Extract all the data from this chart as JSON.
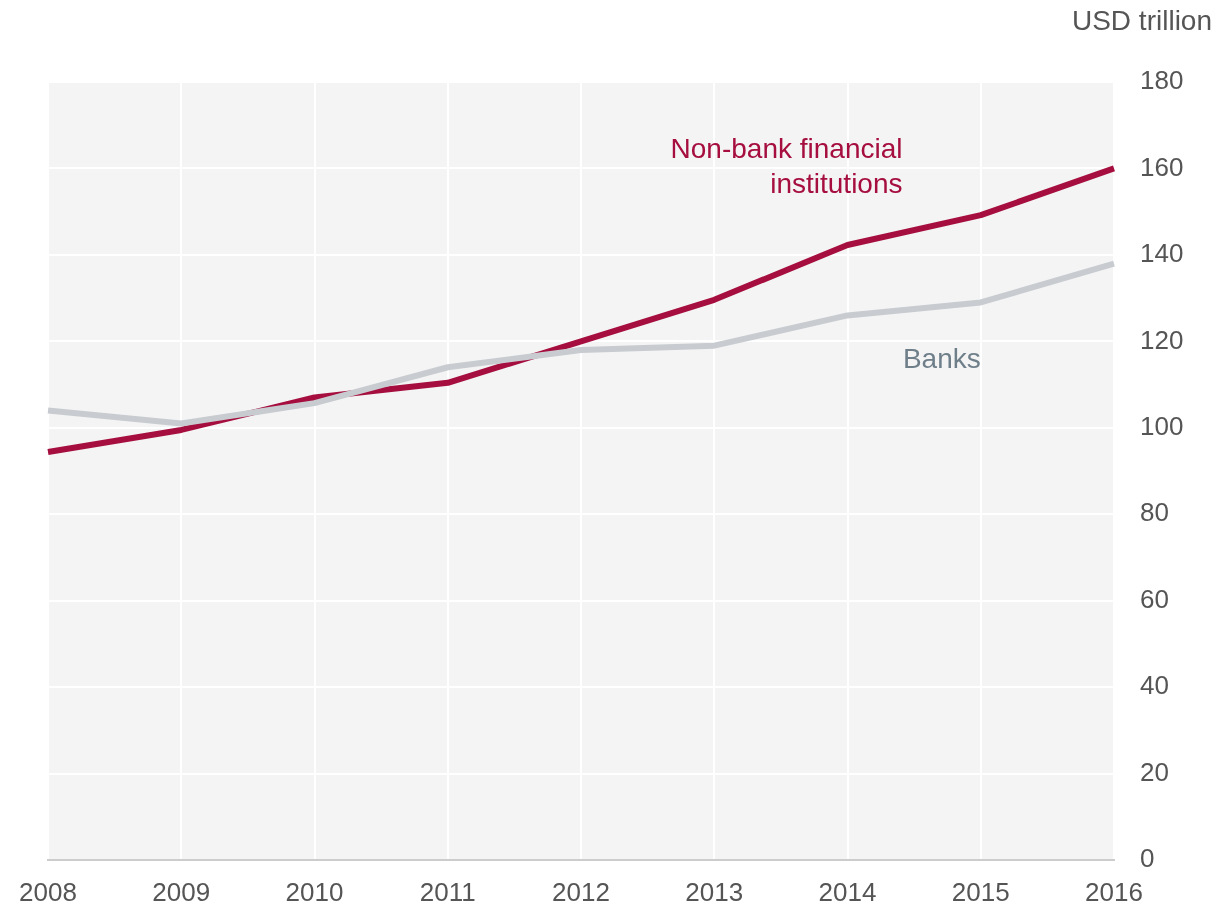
{
  "chart_data": {
    "type": "line",
    "ylabel": "USD trillion",
    "categories": [
      "2008",
      "2009",
      "2010",
      "2011",
      "2012",
      "2013",
      "2014",
      "2015",
      "2016"
    ],
    "series": [
      {
        "name": "Banks",
        "color": "#c8ccd0",
        "values": [
          104,
          101,
          105.7,
          114,
          118,
          119,
          126,
          129,
          138
        ]
      },
      {
        "name": "Non-bank financial institutions",
        "color": "#a50e3e",
        "values": [
          94.4,
          99.5,
          107,
          110.4,
          120,
          129.6,
          142.3,
          149.2,
          160
        ]
      }
    ],
    "ylim": [
      0,
      180
    ],
    "yticks": [
      0,
      20,
      40,
      60,
      80,
      100,
      120,
      140,
      160,
      180
    ],
    "grid": true,
    "legend": false,
    "marker": "none",
    "line_style": "solid"
  }
}
